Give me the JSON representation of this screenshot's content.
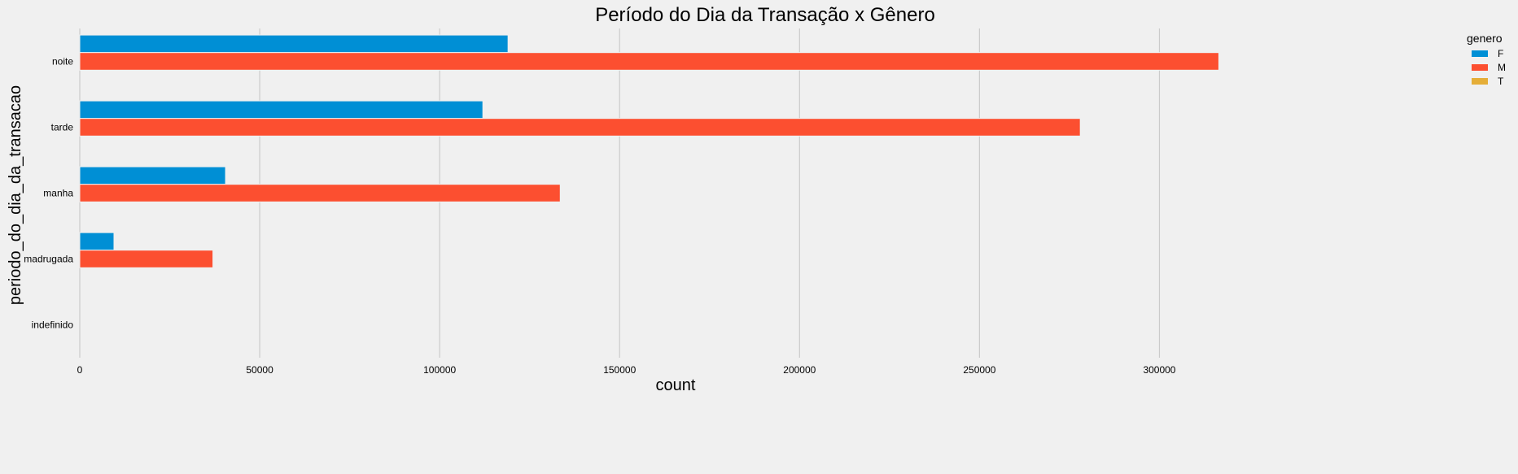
{
  "chart_data": {
    "type": "bar",
    "orientation": "horizontal",
    "title": "Período do Dia da Transação x Gênero",
    "xlabel": "count",
    "ylabel": "periodo_do_dia_da_transacao",
    "categories": [
      "noite",
      "tarde",
      "manha",
      "madrugada",
      "indefinido"
    ],
    "series": [
      {
        "name": "F",
        "color": "#008fd5",
        "values": [
          119000,
          112000,
          40500,
          9500,
          0
        ]
      },
      {
        "name": "M",
        "color": "#fc4f30",
        "values": [
          316500,
          278000,
          133500,
          37000,
          0
        ]
      },
      {
        "name": "T",
        "color": "#e5ae38",
        "values": [
          0,
          0,
          0,
          0,
          0
        ]
      }
    ],
    "xlim": [
      0,
      325000
    ],
    "xticks": [
      0,
      50000,
      100000,
      150000,
      200000,
      250000,
      300000
    ],
    "grid": "vertical",
    "legend": {
      "title": "genero",
      "position": "top-right"
    }
  }
}
